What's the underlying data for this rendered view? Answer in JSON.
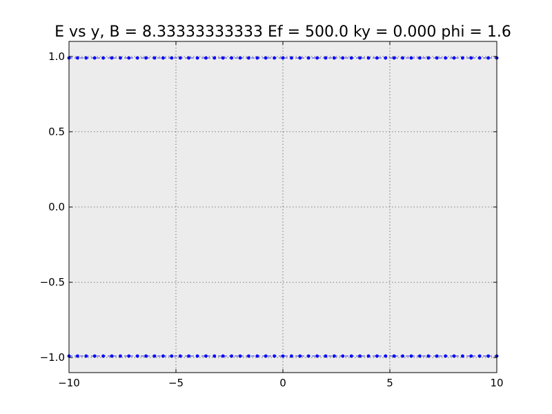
{
  "chart_data": {
    "type": "scatter",
    "title": "E vs y, B = 8.33333333333 Ef = 500.0 ky = 0.000 phi = 1.6",
    "xlabel": "",
    "ylabel": "",
    "xlim": [
      -10,
      10
    ],
    "ylim": [
      -1.1,
      1.1
    ],
    "x_ticks": [
      -10,
      -5,
      0,
      5,
      10
    ],
    "x_tick_labels": [
      "−10",
      "−5",
      "0",
      "5",
      "10"
    ],
    "y_ticks": [
      -1.0,
      -0.5,
      0.0,
      0.5,
      1.0
    ],
    "y_tick_labels": [
      "−1.0",
      "−0.5",
      "0.0",
      "0.5",
      "1.0"
    ],
    "grid": true,
    "background_color": "#ececec",
    "series_color": "#0000ff",
    "series": [
      {
        "x": [
          -10.0,
          -9.6,
          -9.2,
          -8.8,
          -8.4,
          -8.0,
          -7.6,
          -7.2,
          -6.8,
          -6.4,
          -6.0,
          -5.6,
          -5.2,
          -4.8,
          -4.4,
          -4.0,
          -3.6,
          -3.2,
          -2.8,
          -2.4,
          -2.0,
          -1.6,
          -1.2,
          -0.8,
          -0.4,
          0.0,
          0.4,
          0.8,
          1.2,
          1.6,
          2.0,
          2.4,
          2.8,
          3.2,
          3.6,
          4.0,
          4.4,
          4.8,
          5.2,
          5.6,
          6.0,
          6.4,
          6.8,
          7.2,
          7.6,
          8.0,
          8.4,
          8.8,
          9.2,
          9.6,
          10.0
        ],
        "y": [
          0.99,
          0.99,
          0.99,
          0.99,
          0.99,
          0.99,
          0.99,
          0.99,
          0.99,
          0.99,
          0.99,
          0.99,
          0.99,
          0.99,
          0.99,
          0.99,
          0.99,
          0.99,
          0.99,
          0.99,
          0.99,
          0.99,
          0.99,
          0.99,
          0.99,
          0.99,
          0.99,
          0.99,
          0.99,
          0.99,
          0.99,
          0.99,
          0.99,
          0.99,
          0.99,
          0.99,
          0.99,
          0.99,
          0.99,
          0.99,
          0.99,
          0.99,
          0.99,
          0.99,
          0.99,
          0.99,
          0.99,
          0.99,
          0.99,
          0.99,
          0.99
        ]
      },
      {
        "x": [
          -10.0,
          -9.6,
          -9.2,
          -8.8,
          -8.4,
          -8.0,
          -7.6,
          -7.2,
          -6.8,
          -6.4,
          -6.0,
          -5.6,
          -5.2,
          -4.8,
          -4.4,
          -4.0,
          -3.6,
          -3.2,
          -2.8,
          -2.4,
          -2.0,
          -1.6,
          -1.2,
          -0.8,
          -0.4,
          0.0,
          0.4,
          0.8,
          1.2,
          1.6,
          2.0,
          2.4,
          2.8,
          3.2,
          3.6,
          4.0,
          4.4,
          4.8,
          5.2,
          5.6,
          6.0,
          6.4,
          6.8,
          7.2,
          7.6,
          8.0,
          8.4,
          8.8,
          9.2,
          9.6,
          10.0
        ],
        "y": [
          -0.99,
          -0.99,
          -0.99,
          -0.99,
          -0.99,
          -0.99,
          -0.99,
          -0.99,
          -0.99,
          -0.99,
          -0.99,
          -0.99,
          -0.99,
          -0.99,
          -0.99,
          -0.99,
          -0.99,
          -0.99,
          -0.99,
          -0.99,
          -0.99,
          -0.99,
          -0.99,
          -0.99,
          -0.99,
          -0.99,
          -0.99,
          -0.99,
          -0.99,
          -0.99,
          -0.99,
          -0.99,
          -0.99,
          -0.99,
          -0.99,
          -0.99,
          -0.99,
          -0.99,
          -0.99,
          -0.99,
          -0.99,
          -0.99,
          -0.99,
          -0.99,
          -0.99,
          -0.99,
          -0.99,
          -0.99,
          -0.99,
          -0.99,
          -0.99
        ]
      }
    ]
  }
}
